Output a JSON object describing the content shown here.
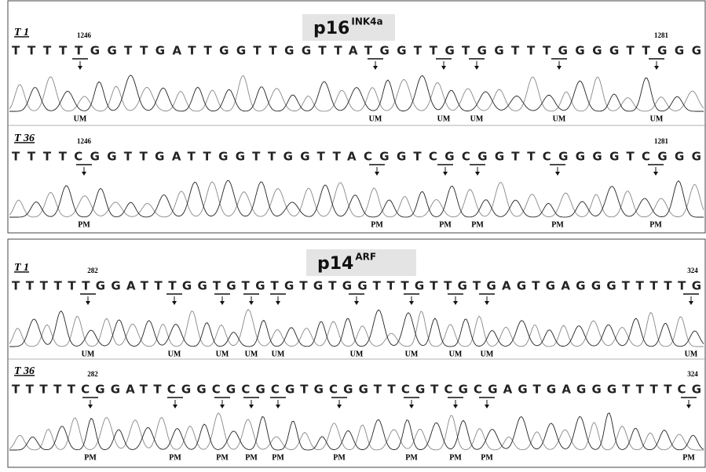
{
  "panels": [
    {
      "title": "p16",
      "title_sup": "INK4a",
      "tracks": [
        {
          "name": "T 1",
          "start": "1246",
          "end": "1281",
          "sequence": "TTTTTGGTTGATTGGTTGGTTATGGTTGTGGTTTGGGGTTGGG",
          "marks": [
            "UM",
            "UM",
            "UM",
            "UM",
            "UM",
            "UM"
          ]
        },
        {
          "name": "T 36",
          "start": "1246",
          "end": "1281",
          "sequence": "TTTTCGGTTGATTGGTTGGTTACGGTCGCGGTTCGGGGTCGGG",
          "marks": [
            "PM",
            "PM",
            "PM",
            "PM",
            "PM",
            "PM"
          ]
        }
      ]
    },
    {
      "title": "p14",
      "title_sup": "ARF",
      "tracks": [
        {
          "name": "T 1",
          "start": "282",
          "end": "324",
          "sequence": "TTTTTTGGATTTGGTGTGTGTGTGGTTTGTTGTGAGTGAGGGTTTTTG",
          "marks": [
            "UM",
            "UM",
            "UM",
            "UM",
            "UM",
            "UM",
            "UM",
            "UM",
            "UM",
            "UM"
          ]
        },
        {
          "name": "T 36",
          "start": "282",
          "end": "324",
          "sequence": "TTTTTCGGATTCGGCGCGCGTGCGGTTCGTCGCGAGTGAGGGTTTTCG",
          "marks": [
            "PM",
            "PM",
            "PM",
            "PM",
            "PM",
            "PM",
            "PM",
            "PM",
            "PM",
            "PM"
          ]
        }
      ]
    }
  ]
}
